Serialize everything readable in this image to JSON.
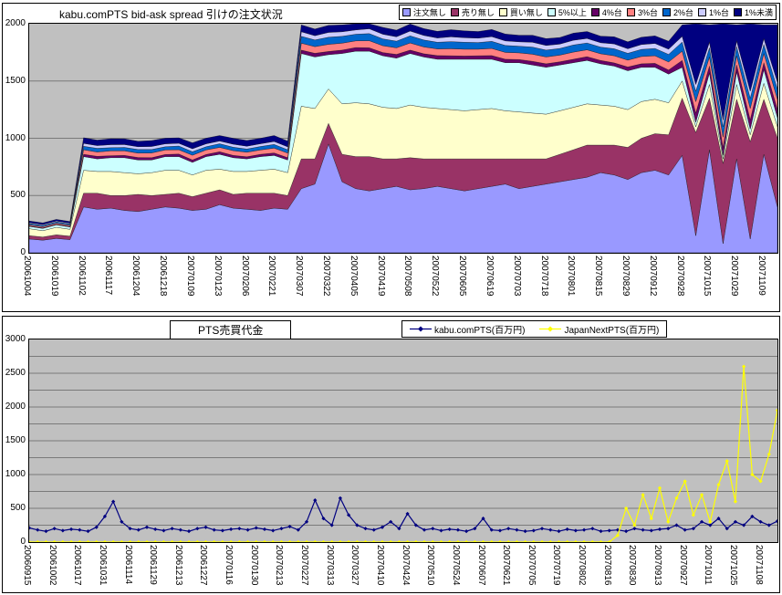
{
  "chart_data": [
    {
      "type": "area",
      "stacked": true,
      "title": "kabu.comPTS bid-ask spread 引けの注文状況",
      "plot_bg": "#C0C0C0",
      "ylim": [
        0,
        2000
      ],
      "ytick": 500,
      "grid_step": 500,
      "legend_position": "top-right",
      "samples_per_label": 2,
      "x_labels": [
        "20061004",
        "20061019",
        "20061102",
        "20061117",
        "20061204",
        "20061218",
        "20070109",
        "20070123",
        "20070206",
        "20070221",
        "20070307",
        "20070322",
        "20070405",
        "20070419",
        "20070508",
        "20070522",
        "20070605",
        "20070619",
        "20070703",
        "20070718",
        "20070801",
        "20070815",
        "20070829",
        "20070912",
        "20070928",
        "20071015",
        "20071029",
        "20071109"
      ],
      "series": [
        {
          "name": "注文無し",
          "color": "#9999FF",
          "values": [
            120,
            110,
            125,
            115,
            400,
            380,
            390,
            370,
            360,
            380,
            400,
            390,
            370,
            380,
            420,
            390,
            380,
            370,
            390,
            380,
            560,
            600,
            950,
            620,
            560,
            540,
            560,
            580,
            550,
            560,
            580,
            560,
            540,
            560,
            580,
            600,
            560,
            580,
            600,
            620,
            640,
            660,
            700,
            680,
            640,
            700,
            720,
            680,
            850,
            150,
            900,
            80,
            820,
            120,
            860,
            400
          ]
        },
        {
          "name": "売り無し",
          "color": "#993366",
          "values": [
            30,
            28,
            32,
            30,
            120,
            140,
            110,
            130,
            150,
            120,
            110,
            130,
            120,
            140,
            130,
            120,
            140,
            150,
            130,
            120,
            260,
            220,
            180,
            240,
            280,
            300,
            260,
            240,
            280,
            260,
            240,
            260,
            280,
            260,
            240,
            220,
            260,
            240,
            220,
            240,
            260,
            280,
            240,
            260,
            280,
            300,
            320,
            350,
            500,
            900,
            450,
            700,
            520,
            850,
            480,
            600
          ]
        },
        {
          "name": "買い無し",
          "color": "#FFFFCC",
          "values": [
            60,
            55,
            65,
            60,
            200,
            190,
            210,
            200,
            180,
            200,
            210,
            200,
            190,
            200,
            180,
            200,
            190,
            200,
            210,
            200,
            460,
            440,
            300,
            440,
            470,
            460,
            450,
            440,
            460,
            450,
            440,
            430,
            420,
            430,
            440,
            420,
            410,
            400,
            390,
            380,
            370,
            360,
            350,
            340,
            330,
            320,
            300,
            280,
            150,
            50,
            120,
            40,
            130,
            60,
            140,
            100
          ]
        },
        {
          "name": "5%以上",
          "color": "#CCFFFF",
          "values": [
            20,
            20,
            22,
            20,
            120,
            110,
            120,
            130,
            120,
            110,
            120,
            120,
            110,
            120,
            130,
            120,
            110,
            120,
            120,
            110,
            460,
            450,
            300,
            440,
            450,
            460,
            450,
            440,
            450,
            440,
            430,
            440,
            450,
            440,
            430,
            420,
            430,
            420,
            410,
            400,
            390,
            380,
            360,
            350,
            340,
            300,
            280,
            250,
            120,
            40,
            100,
            30,
            110,
            50,
            120,
            80
          ]
        },
        {
          "name": "4%台",
          "color": "#660066",
          "values": [
            5,
            5,
            5,
            5,
            20,
            22,
            18,
            20,
            22,
            20,
            18,
            22,
            20,
            18,
            22,
            20,
            18,
            20,
            22,
            20,
            30,
            32,
            28,
            30,
            32,
            30,
            28,
            32,
            30,
            28,
            32,
            30,
            28,
            30,
            32,
            30,
            28,
            32,
            30,
            28,
            30,
            32,
            30,
            28,
            32,
            30,
            34,
            36,
            60,
            80,
            60,
            70,
            60,
            80,
            60,
            70
          ]
        },
        {
          "name": "3%台",
          "color": "#FF8080",
          "values": [
            10,
            10,
            10,
            10,
            40,
            38,
            42,
            40,
            38,
            42,
            40,
            38,
            42,
            40,
            38,
            42,
            40,
            38,
            42,
            40,
            60,
            58,
            62,
            60,
            58,
            62,
            60,
            58,
            62,
            60,
            58,
            62,
            60,
            58,
            62,
            60,
            58,
            62,
            60,
            58,
            62,
            60,
            58,
            62,
            60,
            64,
            66,
            70,
            80,
            100,
            80,
            90,
            80,
            100,
            80,
            90
          ]
        },
        {
          "name": "2%台",
          "color": "#0066CC",
          "values": [
            10,
            10,
            10,
            10,
            30,
            32,
            28,
            30,
            32,
            30,
            28,
            32,
            30,
            28,
            32,
            30,
            28,
            30,
            32,
            30,
            60,
            58,
            62,
            60,
            58,
            62,
            60,
            58,
            62,
            60,
            58,
            62,
            60,
            58,
            62,
            60,
            58,
            62,
            60,
            58,
            62,
            60,
            58,
            62,
            60,
            62,
            64,
            66,
            80,
            90,
            80,
            90,
            80,
            90,
            80,
            90
          ]
        },
        {
          "name": "1%台",
          "color": "#CCCCFF",
          "values": [
            8,
            8,
            8,
            8,
            25,
            24,
            26,
            25,
            24,
            26,
            25,
            24,
            26,
            25,
            24,
            26,
            25,
            24,
            26,
            25,
            40,
            38,
            42,
            40,
            38,
            42,
            40,
            38,
            42,
            40,
            38,
            42,
            40,
            38,
            42,
            40,
            38,
            42,
            40,
            38,
            42,
            40,
            38,
            42,
            40,
            42,
            44,
            46,
            50,
            60,
            50,
            60,
            50,
            60,
            50,
            60
          ]
        },
        {
          "name": "1%未満",
          "color": "#000080",
          "values": [
            15,
            15,
            15,
            15,
            50,
            48,
            52,
            50,
            48,
            52,
            50,
            48,
            52,
            50,
            48,
            52,
            50,
            48,
            52,
            50,
            60,
            58,
            62,
            60,
            58,
            62,
            60,
            58,
            62,
            60,
            58,
            62,
            60,
            58,
            62,
            60,
            58,
            62,
            60,
            58,
            62,
            60,
            58,
            62,
            60,
            64,
            66,
            70,
            100,
            1700,
            150,
            1800,
            140,
            1600,
            120,
            500
          ]
        }
      ]
    },
    {
      "type": "line",
      "title": "PTS売買代金",
      "plot_bg": "#C0C0C0",
      "ylim": [
        0,
        3000
      ],
      "ytick": 500,
      "grid_step": 250,
      "legend_position": "top-center",
      "samples_per_label": 3,
      "x_labels": [
        "20060915",
        "20061002",
        "20061017",
        "20061031",
        "20061114",
        "20061129",
        "20061213",
        "20061227",
        "20070116",
        "20070130",
        "20070213",
        "20070227",
        "20070313",
        "20070327",
        "20070410",
        "20070424",
        "20070510",
        "20070524",
        "20070607",
        "20070621",
        "20070705",
        "20070719",
        "20070802",
        "20070816",
        "20070830",
        "20070913",
        "20070927",
        "20071011",
        "20071025",
        "20071108"
      ],
      "series": [
        {
          "name": "kabu.comPTS(百万円)",
          "color": "#000080",
          "marker": "diamond",
          "values": [
            210,
            180,
            160,
            200,
            170,
            190,
            180,
            160,
            220,
            380,
            600,
            300,
            200,
            180,
            220,
            190,
            170,
            200,
            180,
            160,
            200,
            220,
            180,
            170,
            190,
            200,
            180,
            210,
            190,
            170,
            200,
            230,
            180,
            300,
            620,
            350,
            250,
            650,
            400,
            250,
            200,
            180,
            220,
            300,
            200,
            420,
            250,
            180,
            200,
            170,
            190,
            180,
            160,
            200,
            350,
            180,
            170,
            200,
            180,
            160,
            170,
            200,
            180,
            160,
            190,
            170,
            180,
            200,
            160,
            170,
            180,
            160,
            200,
            180,
            170,
            190,
            200,
            250,
            180,
            200,
            300,
            250,
            350,
            200,
            300,
            250,
            380,
            300,
            250,
            310
          ]
        },
        {
          "name": "JapanNextPTS(百万円)",
          "color": "#FFFF00",
          "marker": "diamond",
          "values": [
            0,
            0,
            0,
            0,
            0,
            0,
            0,
            0,
            0,
            0,
            0,
            0,
            0,
            0,
            0,
            0,
            0,
            0,
            0,
            0,
            0,
            0,
            0,
            0,
            0,
            0,
            0,
            0,
            0,
            0,
            0,
            0,
            0,
            0,
            0,
            0,
            0,
            0,
            0,
            0,
            0,
            0,
            0,
            0,
            0,
            0,
            0,
            0,
            0,
            0,
            0,
            0,
            0,
            0,
            0,
            0,
            0,
            0,
            0,
            0,
            0,
            0,
            0,
            0,
            0,
            0,
            0,
            0,
            0,
            0,
            100,
            500,
            250,
            700,
            350,
            800,
            300,
            650,
            900,
            400,
            700,
            300,
            850,
            1200,
            600,
            2600,
            1000,
            900,
            1300,
            1950
          ]
        }
      ]
    }
  ]
}
